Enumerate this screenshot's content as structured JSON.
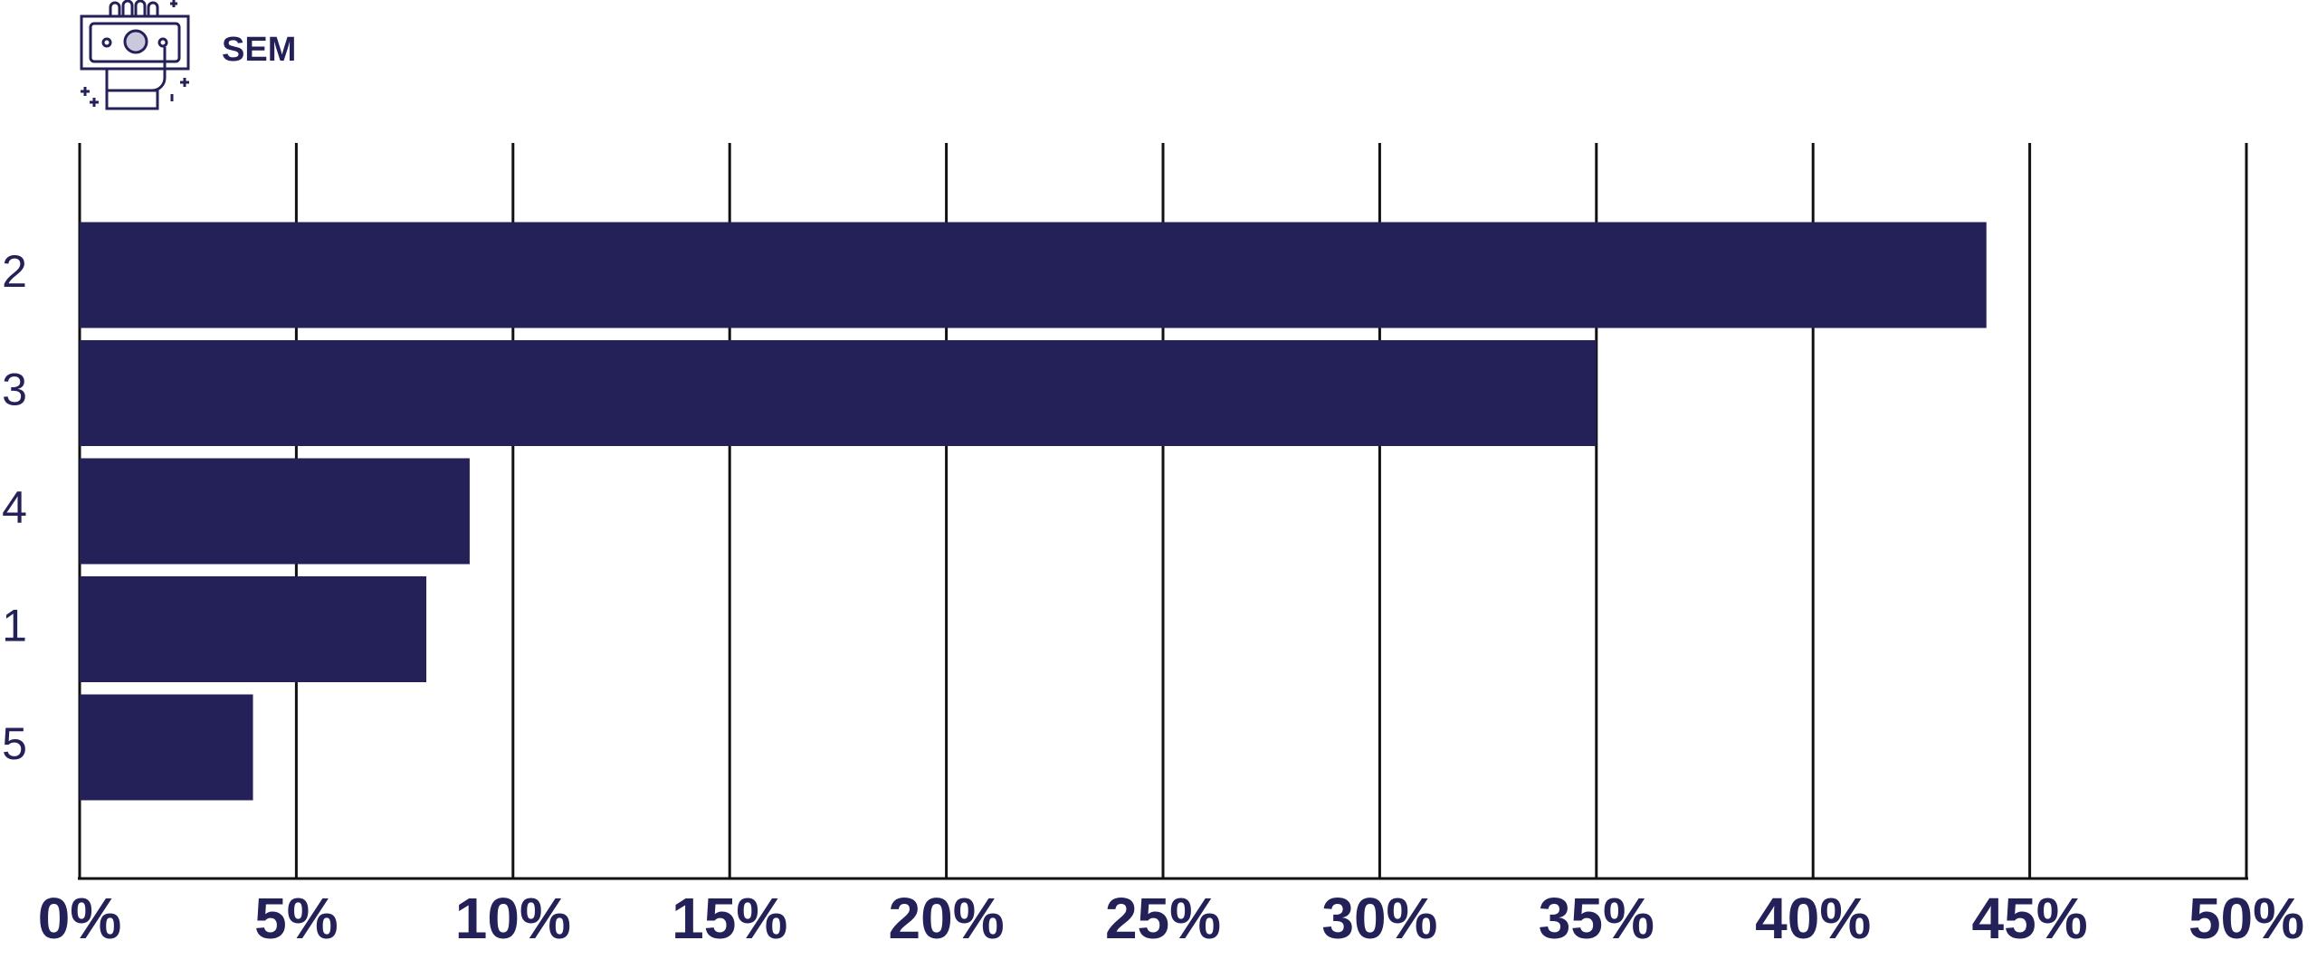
{
  "chart_data": {
    "type": "barh",
    "title": "SEM",
    "categories": [
      "2",
      "3",
      "4",
      "1",
      "5"
    ],
    "values": [
      44,
      35,
      9,
      8,
      4
    ],
    "color": "#232157",
    "xlim": [
      0,
      50
    ],
    "xticks": [
      {
        "value": 0,
        "label": "0%"
      },
      {
        "value": 5,
        "label": "5%"
      },
      {
        "value": 10,
        "label": "10%"
      },
      {
        "value": 15,
        "label": "15%"
      },
      {
        "value": 20,
        "label": "20%"
      },
      {
        "value": 25,
        "label": "25%"
      },
      {
        "value": 30,
        "label": "30%"
      },
      {
        "value": 35,
        "label": "35%"
      },
      {
        "value": 40,
        "label": "40%"
      },
      {
        "value": 45,
        "label": "45%"
      },
      {
        "value": 50,
        "label": "50%"
      }
    ],
    "grid": true
  }
}
